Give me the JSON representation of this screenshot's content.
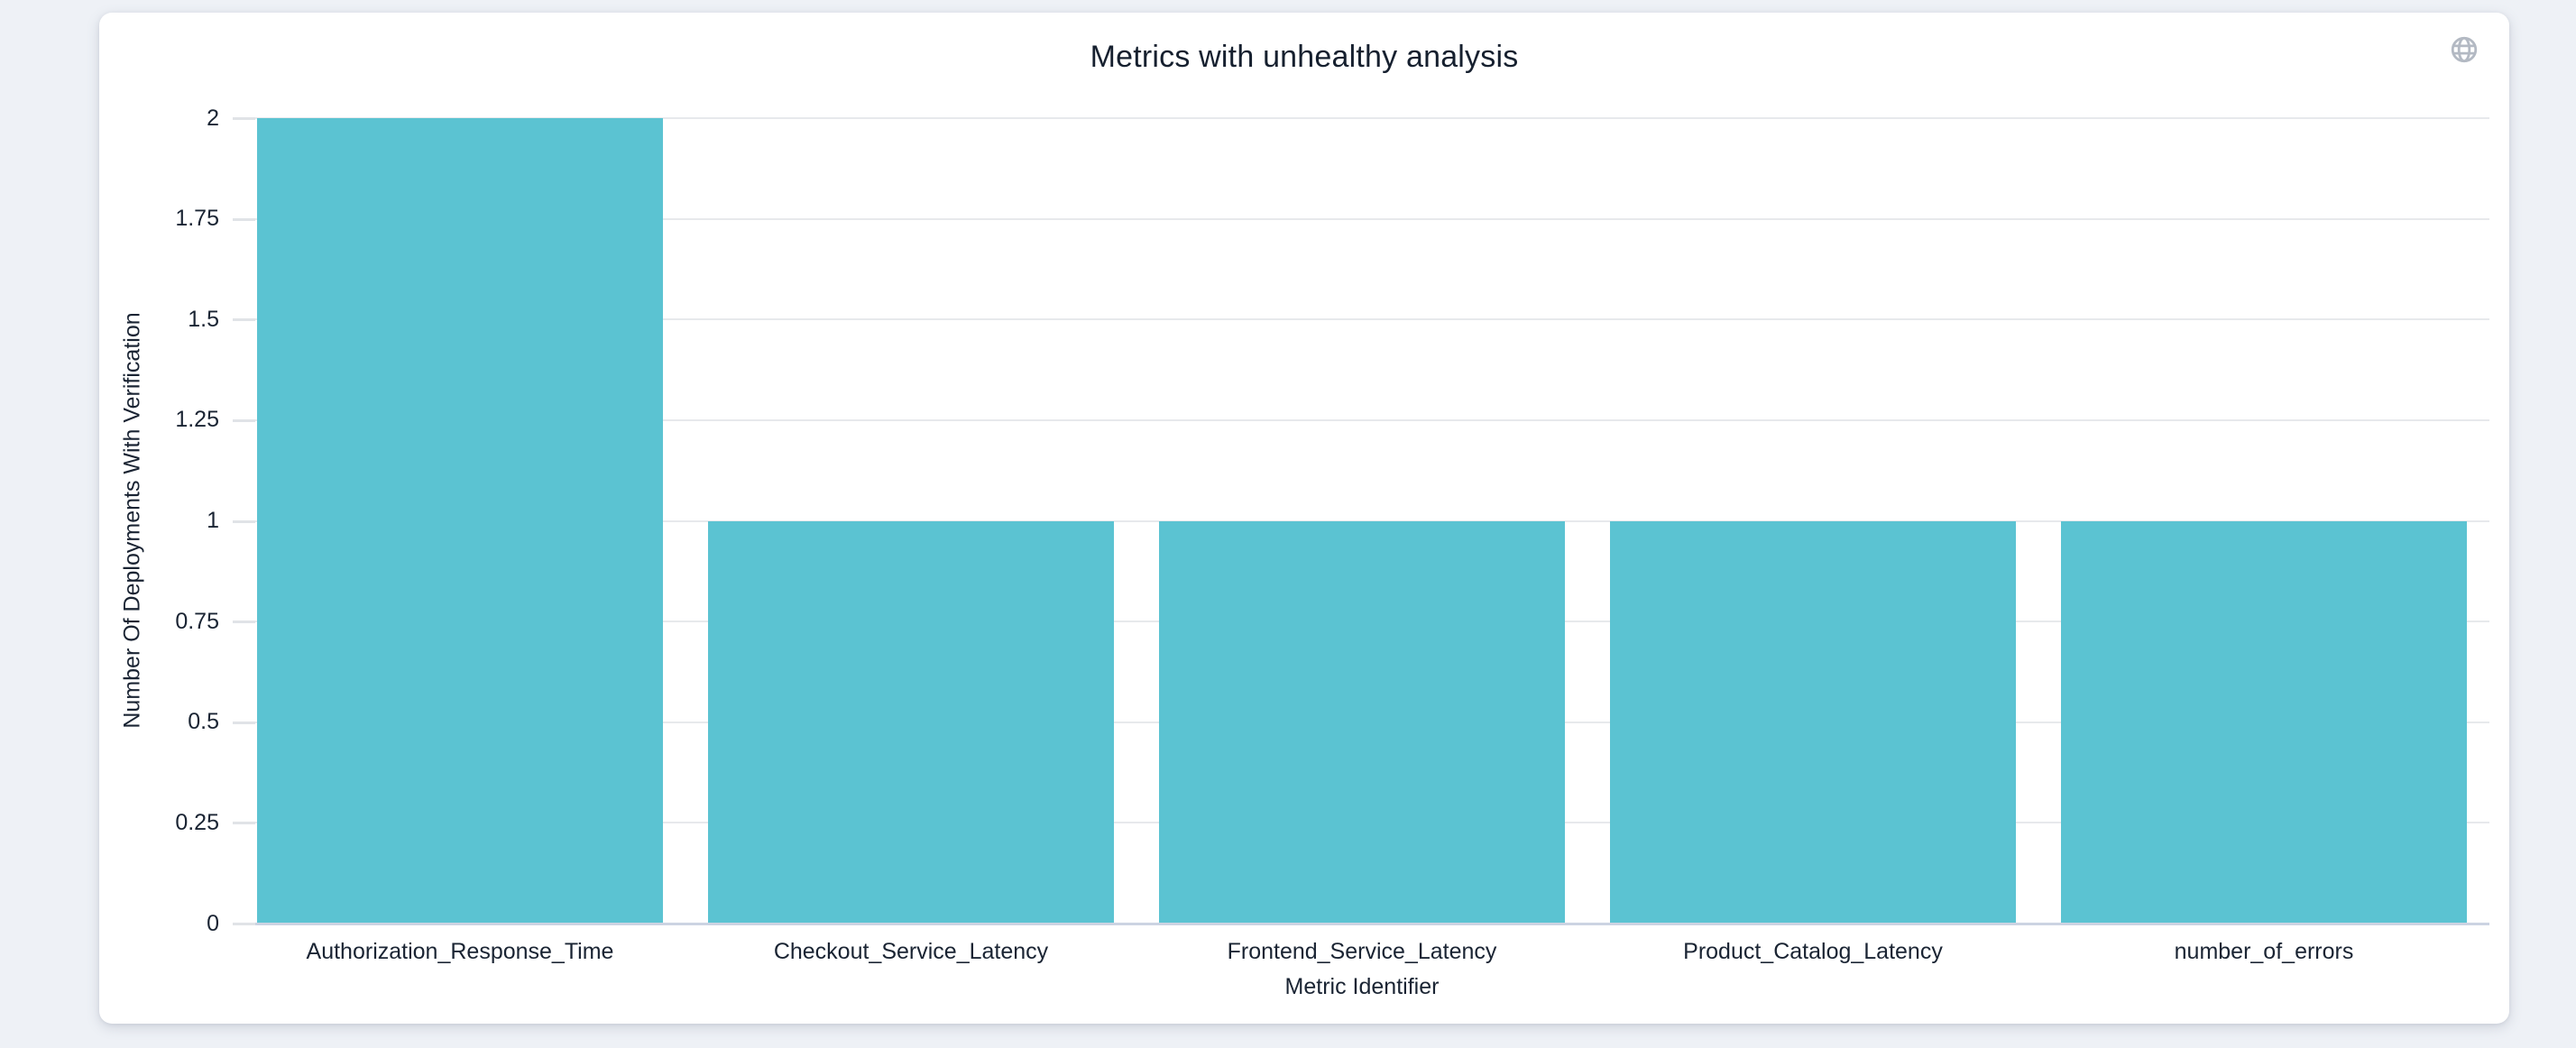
{
  "card": {
    "title": "Metrics with unhealthy analysis"
  },
  "icons": {
    "globe": "globe-icon"
  },
  "colors": {
    "bar": "#5bc3d2",
    "text": "#1a2433",
    "title_text": "#16202f",
    "gridline": "#e7e9ec",
    "axis_line": "#ccd3e2",
    "globe_icon": "#b3b9c3",
    "page_background": "#eef1f6",
    "card_background": "#ffffff"
  },
  "chart_data": {
    "type": "bar",
    "title": "Metrics with unhealthy analysis",
    "categories": [
      "Authorization_Response_Time",
      "Checkout_Service_Latency",
      "Frontend_Service_Latency",
      "Product_Catalog_Latency",
      "number_of_errors"
    ],
    "values": [
      2,
      1,
      1,
      1,
      1
    ],
    "xlabel": "Metric Identifier",
    "ylabel": "Number Of Deployments With Verification",
    "ylim": [
      0,
      2
    ],
    "yticks": [
      0,
      0.25,
      0.5,
      0.75,
      1,
      1.25,
      1.5,
      1.75,
      2
    ],
    "grid": true,
    "legend_position": "none",
    "bar_color": "#5bc3d2"
  }
}
